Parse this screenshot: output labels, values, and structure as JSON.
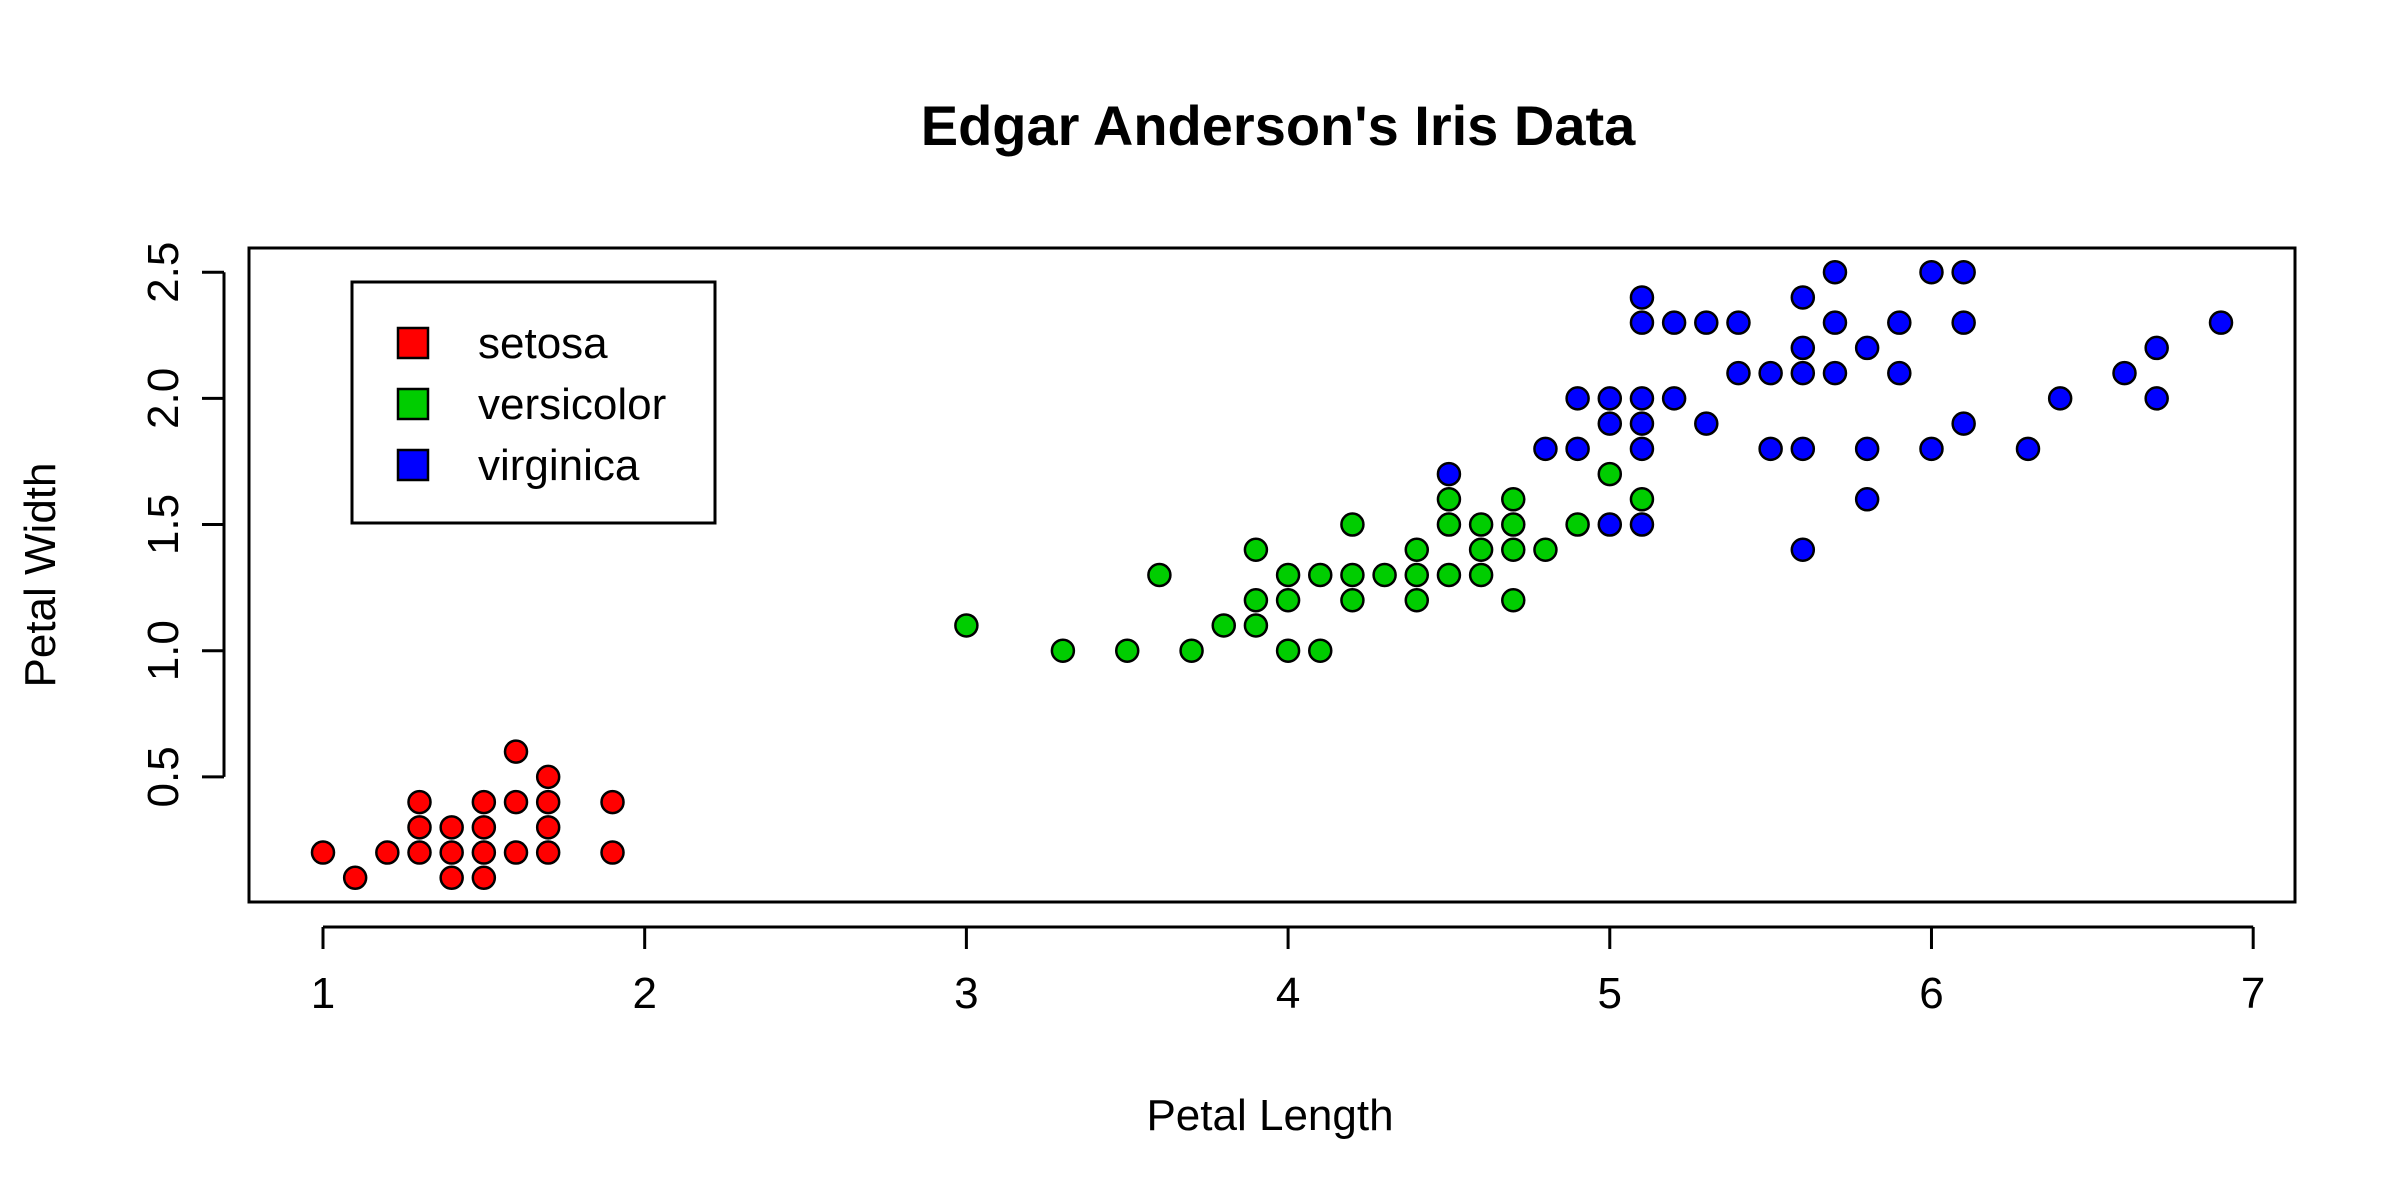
{
  "chart_data": {
    "type": "scatter",
    "title": "Edgar Anderson's Iris Data",
    "xlabel": "Petal Length",
    "ylabel": "Petal Width",
    "xlim": [
      0.77,
      7.13
    ],
    "ylim": [
      0.004,
      2.596
    ],
    "xticks": [
      "1",
      "2",
      "3",
      "4",
      "5",
      "6",
      "7"
    ],
    "yticks": [
      "0.5",
      "1.0",
      "1.5",
      "2.0",
      "2.5"
    ],
    "grid": false,
    "legend": {
      "position": "top-left",
      "entries": [
        "setosa",
        "versicolor",
        "virginica"
      ]
    },
    "series": [
      {
        "name": "setosa",
        "color": "#ff0000",
        "points": [
          [
            1.0,
            0.2
          ],
          [
            1.1,
            0.1
          ],
          [
            1.2,
            0.2
          ],
          [
            1.3,
            0.2
          ],
          [
            1.3,
            0.3
          ],
          [
            1.3,
            0.4
          ],
          [
            1.4,
            0.1
          ],
          [
            1.4,
            0.2
          ],
          [
            1.4,
            0.3
          ],
          [
            1.5,
            0.1
          ],
          [
            1.5,
            0.2
          ],
          [
            1.5,
            0.3
          ],
          [
            1.5,
            0.4
          ],
          [
            1.6,
            0.2
          ],
          [
            1.6,
            0.4
          ],
          [
            1.6,
            0.6
          ],
          [
            1.7,
            0.2
          ],
          [
            1.7,
            0.3
          ],
          [
            1.7,
            0.4
          ],
          [
            1.7,
            0.5
          ],
          [
            1.9,
            0.2
          ],
          [
            1.9,
            0.4
          ]
        ]
      },
      {
        "name": "versicolor",
        "color": "#00cd00",
        "points": [
          [
            3.0,
            1.1
          ],
          [
            3.3,
            1.0
          ],
          [
            3.5,
            1.0
          ],
          [
            3.6,
            1.3
          ],
          [
            3.7,
            1.0
          ],
          [
            3.8,
            1.1
          ],
          [
            3.9,
            1.1
          ],
          [
            3.9,
            1.2
          ],
          [
            3.9,
            1.4
          ],
          [
            4.0,
            1.0
          ],
          [
            4.0,
            1.2
          ],
          [
            4.0,
            1.3
          ],
          [
            4.1,
            1.0
          ],
          [
            4.1,
            1.3
          ],
          [
            4.2,
            1.2
          ],
          [
            4.2,
            1.3
          ],
          [
            4.2,
            1.5
          ],
          [
            4.3,
            1.3
          ],
          [
            4.4,
            1.2
          ],
          [
            4.4,
            1.3
          ],
          [
            4.4,
            1.4
          ],
          [
            4.5,
            1.3
          ],
          [
            4.5,
            1.5
          ],
          [
            4.5,
            1.6
          ],
          [
            4.6,
            1.3
          ],
          [
            4.6,
            1.4
          ],
          [
            4.6,
            1.5
          ],
          [
            4.7,
            1.2
          ],
          [
            4.7,
            1.4
          ],
          [
            4.7,
            1.5
          ],
          [
            4.7,
            1.6
          ],
          [
            4.8,
            1.4
          ],
          [
            4.9,
            1.5
          ],
          [
            5.0,
            1.7
          ],
          [
            5.1,
            1.6
          ]
        ]
      },
      {
        "name": "virginica",
        "color": "#0000ff",
        "points": [
          [
            4.5,
            1.7
          ],
          [
            4.8,
            1.8
          ],
          [
            4.9,
            1.8
          ],
          [
            4.9,
            2.0
          ],
          [
            5.0,
            1.5
          ],
          [
            5.0,
            1.9
          ],
          [
            5.0,
            2.0
          ],
          [
            5.1,
            1.5
          ],
          [
            5.1,
            1.8
          ],
          [
            5.1,
            1.9
          ],
          [
            5.1,
            2.0
          ],
          [
            5.1,
            2.3
          ],
          [
            5.1,
            2.4
          ],
          [
            5.2,
            2.0
          ],
          [
            5.2,
            2.3
          ],
          [
            5.3,
            1.9
          ],
          [
            5.3,
            2.3
          ],
          [
            5.4,
            2.1
          ],
          [
            5.4,
            2.3
          ],
          [
            5.5,
            1.8
          ],
          [
            5.5,
            2.1
          ],
          [
            5.6,
            1.4
          ],
          [
            5.6,
            1.8
          ],
          [
            5.6,
            2.1
          ],
          [
            5.6,
            2.2
          ],
          [
            5.6,
            2.4
          ],
          [
            5.7,
            2.1
          ],
          [
            5.7,
            2.3
          ],
          [
            5.7,
            2.5
          ],
          [
            5.8,
            1.6
          ],
          [
            5.8,
            1.8
          ],
          [
            5.8,
            2.2
          ],
          [
            5.9,
            2.1
          ],
          [
            5.9,
            2.3
          ],
          [
            6.0,
            1.8
          ],
          [
            6.0,
            2.5
          ],
          [
            6.1,
            1.9
          ],
          [
            6.1,
            2.3
          ],
          [
            6.1,
            2.5
          ],
          [
            6.3,
            1.8
          ],
          [
            6.4,
            2.0
          ],
          [
            6.6,
            2.1
          ],
          [
            6.7,
            2.0
          ],
          [
            6.7,
            2.2
          ],
          [
            6.9,
            2.3
          ]
        ]
      }
    ]
  }
}
